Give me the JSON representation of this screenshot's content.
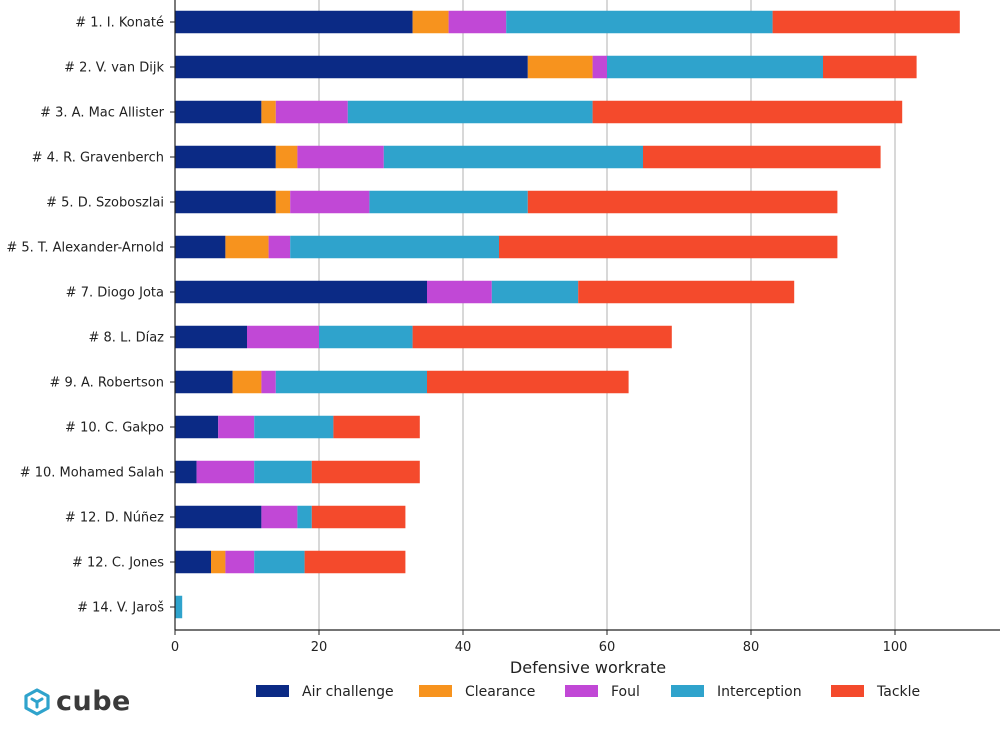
{
  "chart_data": {
    "type": "bar",
    "orientation": "horizontal",
    "stacked": true,
    "title": "",
    "xlabel": "Defensive workrate",
    "ylabel": "",
    "xlim": [
      0,
      114
    ],
    "xticks": [
      0,
      20,
      40,
      60,
      80,
      100
    ],
    "grid": "vertical",
    "legend_position": "bottom",
    "categories": [
      "# 1.  I. Konaté",
      "# 2.  V. van Dijk",
      "# 3.  A. Mac Allister",
      "# 4.  R. Gravenberch",
      "# 5.  D. Szoboszlai",
      "# 5.  T. Alexander-Arnold",
      "# 7.  Diogo Jota",
      "# 8.  L. Díaz",
      "# 9.  A. Robertson",
      "# 10.  C. Gakpo",
      "# 10.  Mohamed Salah",
      "# 12.  D. Núñez",
      "# 12.  C. Jones",
      "# 14.  V. Jaroš"
    ],
    "series": [
      {
        "name": "Air challenge",
        "color": "#0b2a85",
        "values": [
          33,
          49,
          12,
          14,
          14,
          7,
          35,
          10,
          8,
          6,
          3,
          12,
          5,
          0
        ]
      },
      {
        "name": "Clearance",
        "color": "#f7931e",
        "values": [
          5,
          9,
          2,
          3,
          2,
          6,
          0,
          0,
          4,
          0,
          0,
          0,
          2,
          0
        ]
      },
      {
        "name": "Foul",
        "color": "#c148d6",
        "values": [
          8,
          2,
          10,
          12,
          11,
          3,
          9,
          10,
          2,
          5,
          8,
          5,
          4,
          0
        ]
      },
      {
        "name": "Interception",
        "color": "#2fa3cc",
        "values": [
          37,
          30,
          34,
          36,
          22,
          29,
          12,
          13,
          21,
          11,
          8,
          2,
          7,
          1
        ]
      },
      {
        "name": "Tackle",
        "color": "#f44a2c",
        "values": [
          26,
          13,
          43,
          33,
          43,
          47,
          30,
          36,
          28,
          12,
          15,
          13,
          14,
          0
        ]
      }
    ]
  },
  "brand": {
    "name": "cube",
    "logo_icon": "cube-logo-icon"
  }
}
